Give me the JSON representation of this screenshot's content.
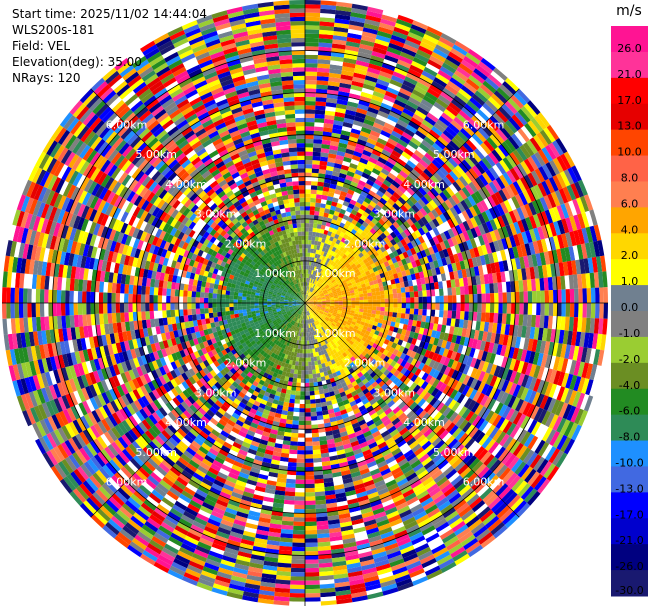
{
  "header": {
    "start_time": "Start time: 2025/11/02 14:44:04",
    "instrument": "WLS200s-181",
    "field": "Field: VEL",
    "elevation": "Elevation(deg): 35.00",
    "nrays": "NRays: 120"
  },
  "chart_data": {
    "type": "heatmap",
    "projection": "polar-ppi",
    "field": "VEL",
    "elevation_deg": 35.0,
    "nrays": 120,
    "range_rings_km": [
      1,
      2,
      3,
      4,
      5,
      6
    ],
    "ring_labels": [
      "1.00km",
      "2.00km",
      "3.00km",
      "4.00km",
      "5.00km",
      "6.00km"
    ],
    "max_range_km": 7.2,
    "colorbar": {
      "unit": "m/s",
      "ticks": [
        "26.0",
        "21.0",
        "17.0",
        "13.0",
        "10.0",
        "8.0",
        "6.0",
        "4.0",
        "2.0",
        "1.0",
        "0.0",
        "-1.0",
        "-2.0",
        "-4.0",
        "-6.0",
        "-8.0",
        "-10.0",
        "-13.0",
        "-17.0",
        "-21.0",
        "-26.0",
        "-30.0"
      ],
      "colors": [
        "#ff1493",
        "#ff3399",
        "#ff0000",
        "#e60000",
        "#ff4500",
        "#ff6347",
        "#ff7f50",
        "#ffa500",
        "#ffd700",
        "#ffff00",
        "#708090",
        "#808080",
        "#9acd32",
        "#6b8e23",
        "#228b22",
        "#2e8b57",
        "#1e90ff",
        "#4169e1",
        "#0000ff",
        "#0000cd",
        "#000080",
        "#191970"
      ]
    },
    "structure": "inner region (<3 km) shows coherent wind: negative (approaching, blue/green) to the west, positive (receding, yellow/orange) to the east; beyond ~3 km the field is noise"
  }
}
